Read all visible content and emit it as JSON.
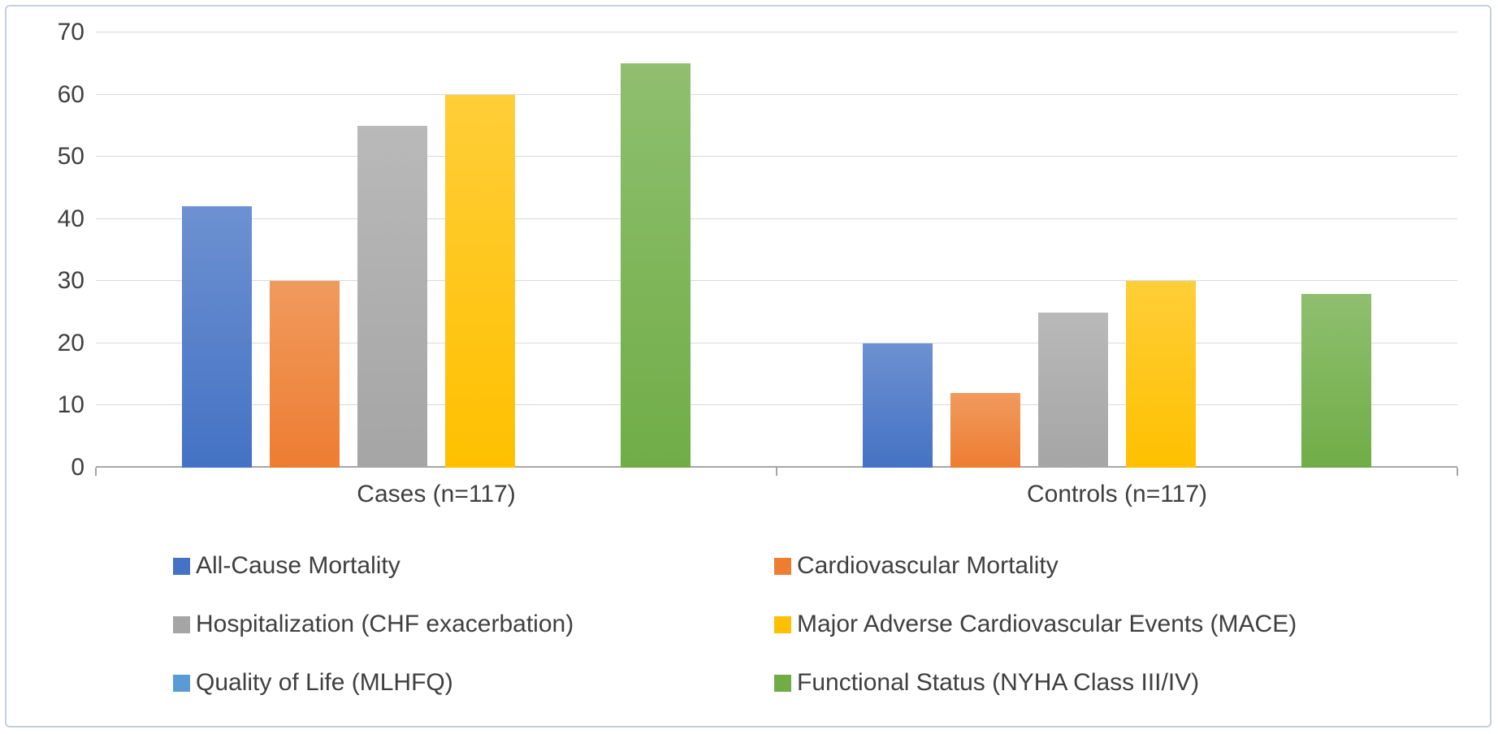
{
  "chart_data": {
    "type": "bar",
    "title": "",
    "xlabel": "",
    "ylabel": "",
    "categories": [
      "Cases (n=117)",
      "Controls (n=117)"
    ],
    "series": [
      {
        "name": "All-Cause Mortality",
        "color": "#4472C4",
        "values": [
          42,
          20
        ]
      },
      {
        "name": "Cardiovascular Mortality",
        "color": "#ED7D31",
        "values": [
          30,
          12
        ]
      },
      {
        "name": "Hospitalization (CHF exacerbation)",
        "color": "#A5A5A5",
        "values": [
          55,
          25
        ]
      },
      {
        "name": "Major Adverse Cardiovascular Events (MACE)",
        "color": "#FFC000",
        "values": [
          60,
          30
        ]
      },
      {
        "name": "Quality of Life (MLHFQ)",
        "color": "#5B9BD5",
        "values": [
          0,
          0
        ]
      },
      {
        "name": "Functional Status (NYHA Class III/IV)",
        "color": "#70AD47",
        "values": [
          65,
          28
        ]
      }
    ],
    "y_axis": {
      "min": 0,
      "max": 70,
      "step": 10,
      "ticks": [
        0,
        10,
        20,
        30,
        40,
        50,
        60,
        70
      ]
    },
    "grid": true,
    "legend_position": "bottom",
    "style_colors": {
      "frame_border": "#c2d1e0",
      "gridline": "#d9d9d9",
      "axis_line": "#a6a6a6",
      "text": "#3f3f3f",
      "background": "#ffffff"
    }
  }
}
